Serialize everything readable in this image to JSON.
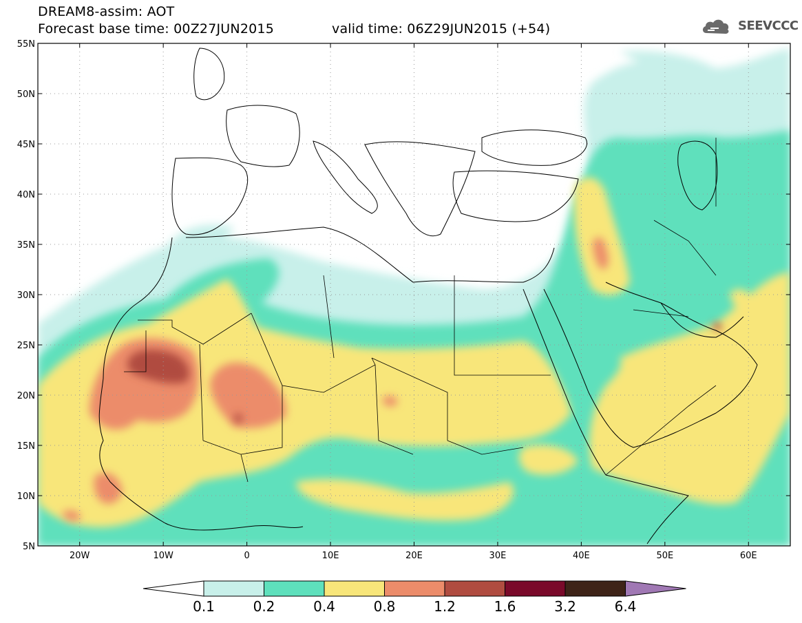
{
  "title": {
    "line1": "DREAM8-assim: AOT",
    "line2": "Forecast base time: 00Z27JUN2015",
    "line3": "valid time: 06Z29JUN2015 (+54)"
  },
  "logo": {
    "text": "SEEVCCC",
    "icon": "cloud-logo-icon"
  },
  "map": {
    "lon_range": [
      -25,
      65
    ],
    "lat_range": [
      5,
      55
    ],
    "lat_ticks": [
      "55N",
      "50N",
      "45N",
      "40N",
      "35N",
      "30N",
      "25N",
      "20N",
      "15N",
      "10N",
      "5N"
    ],
    "lon_ticks": [
      "20W",
      "10W",
      "0",
      "10E",
      "20E",
      "30E",
      "40E",
      "50E",
      "60E"
    ],
    "grid": "dotted"
  },
  "colorbar": {
    "labels": [
      "0.1",
      "0.2",
      "0.4",
      "0.8",
      "1.2",
      "1.6",
      "3.2",
      "6.4"
    ],
    "colors": {
      "below": "#ffffff",
      "c01_02": "#c8f0ea",
      "c02_04": "#5ee0bc",
      "c04_08": "#f8e67a",
      "c08_12": "#ec8c6a",
      "c12_16": "#b04c40",
      "c16_32": "#7a0a2a",
      "c32_64": "#3e2418",
      "above": "#a078b4"
    }
  }
}
